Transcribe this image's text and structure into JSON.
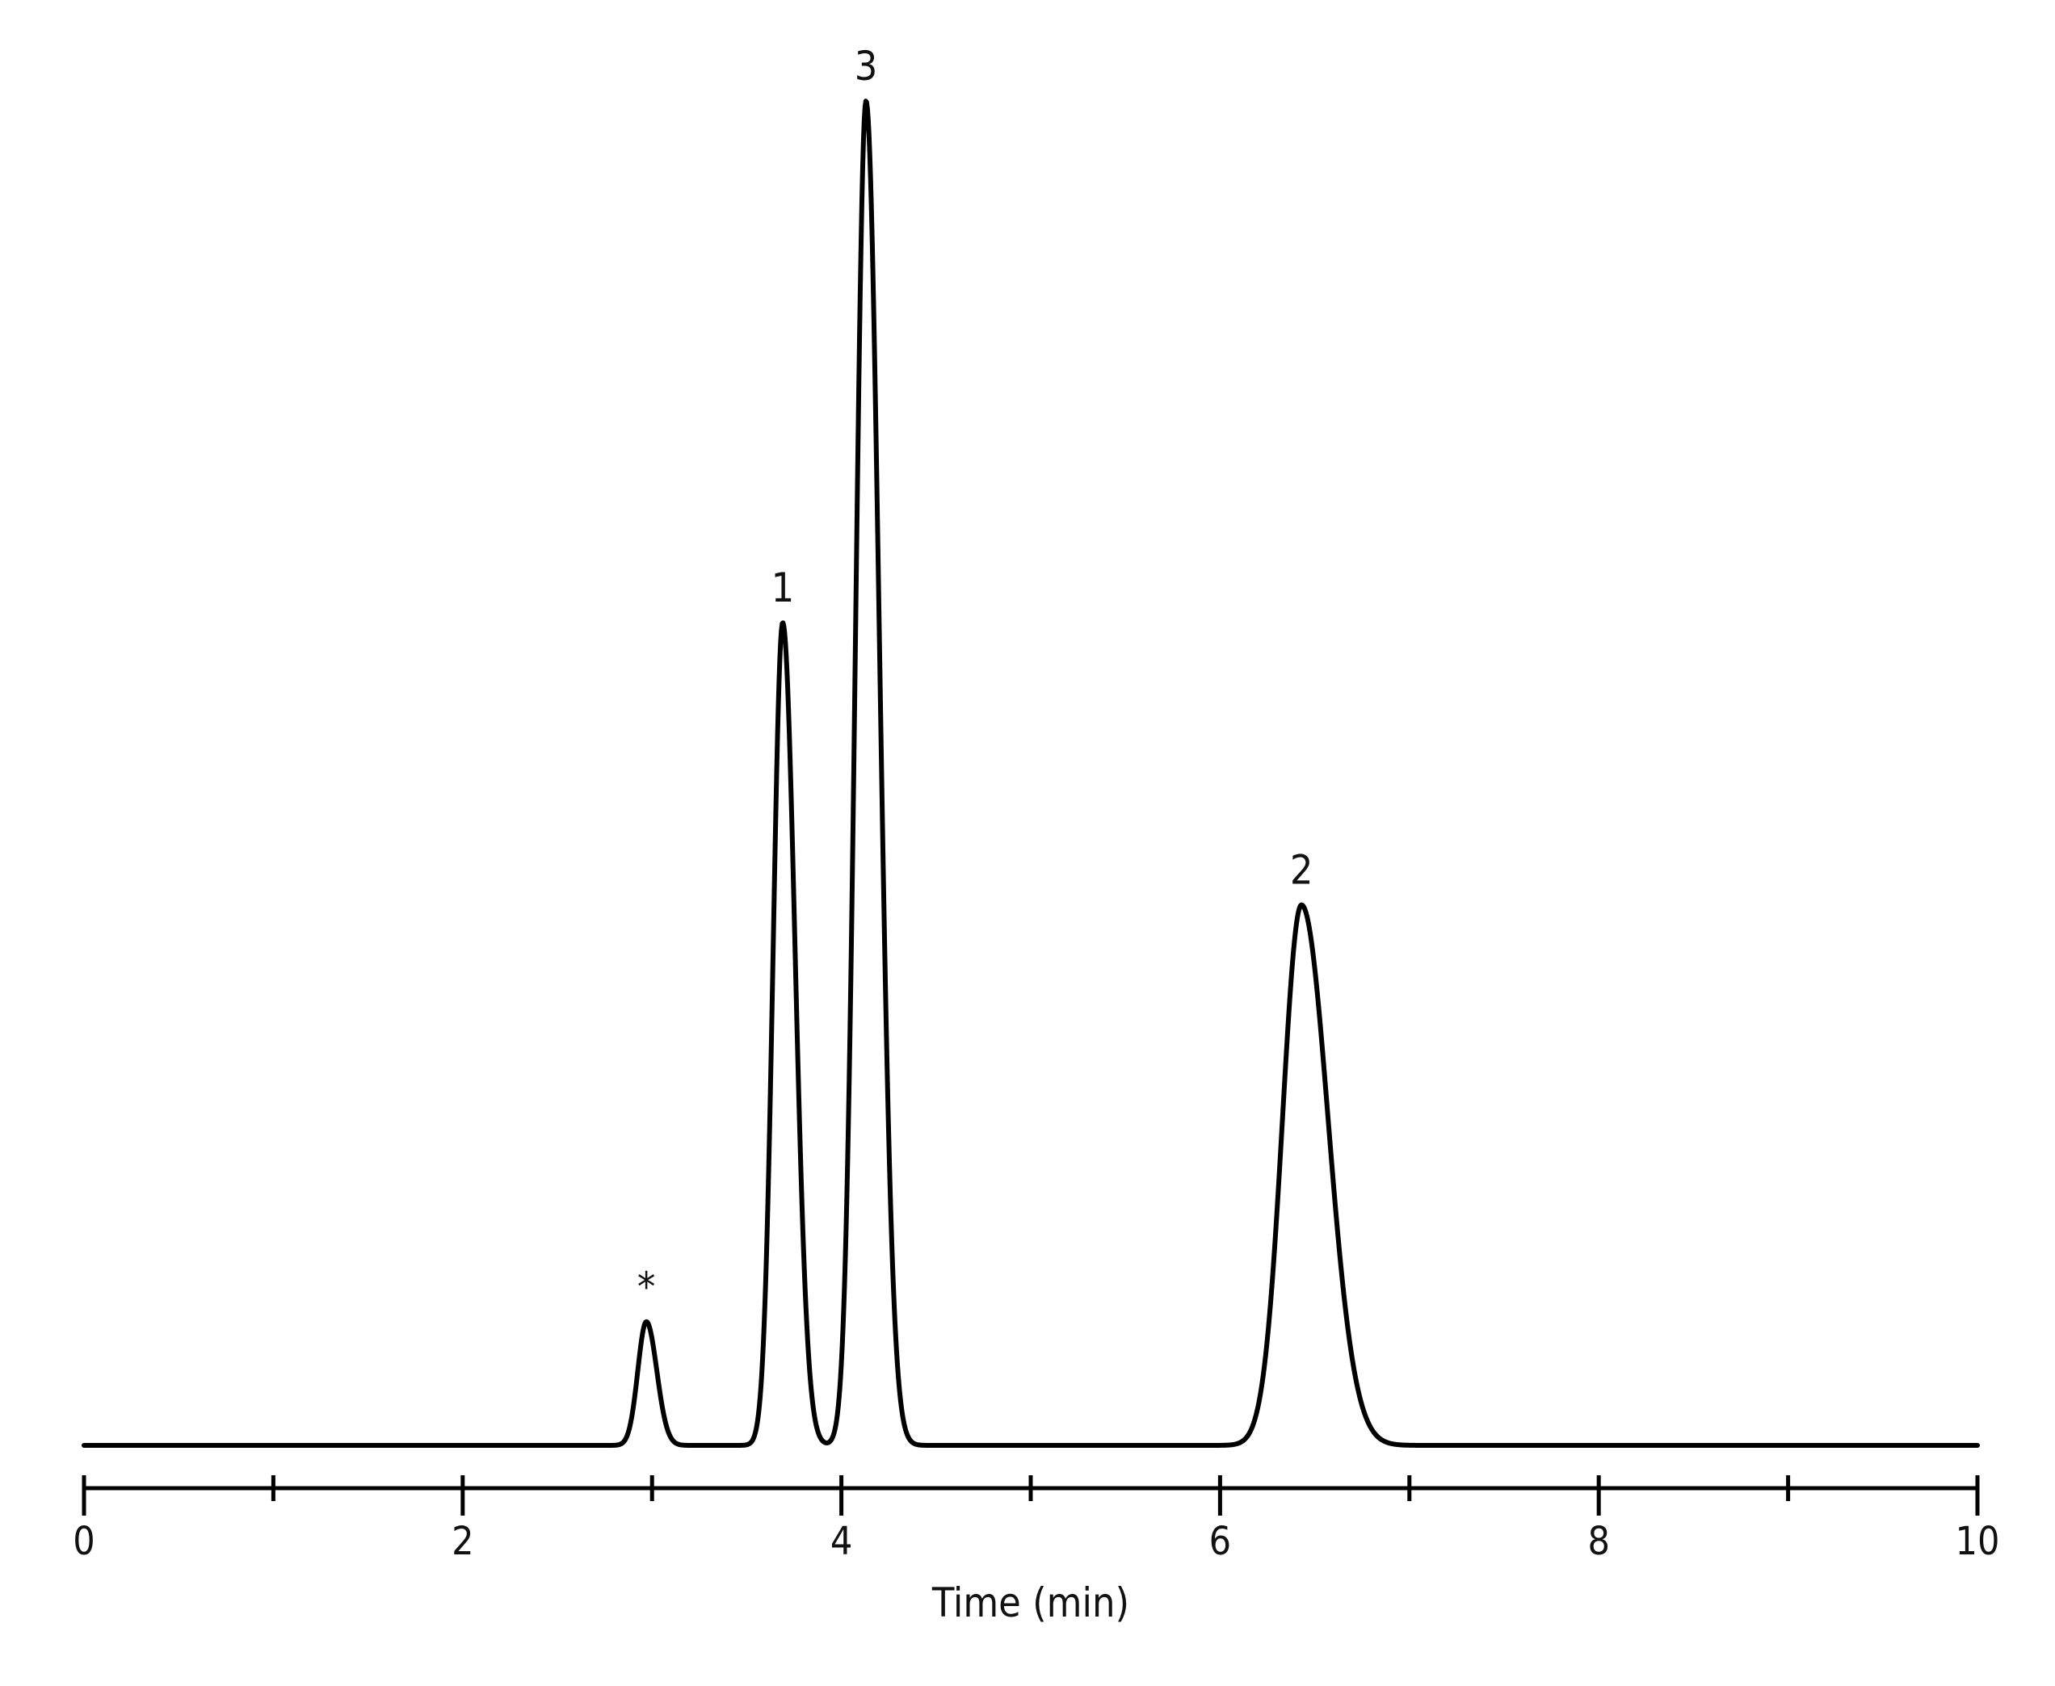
{
  "chart_data": {
    "type": "line",
    "title": "",
    "xlabel": "Time (min)",
    "ylabel": "",
    "xlim": [
      0,
      10
    ],
    "ylim": [
      0,
      1
    ],
    "grid": false,
    "legend": "none",
    "x_ticks_major": [
      0,
      2,
      4,
      6,
      8,
      10
    ],
    "x_tick_labels": [
      "0",
      "2",
      "4",
      "6",
      "8",
      "10"
    ],
    "x_ticks_minor": [
      1,
      3,
      5,
      7,
      9
    ],
    "line_color": "#000000",
    "baseline": 0.0,
    "peaks": [
      {
        "label": "*",
        "time": 2.97,
        "height": 0.092,
        "sigma_left": 0.045,
        "sigma_right": 0.055
      },
      {
        "label": "1",
        "time": 3.69,
        "height": 0.612,
        "sigma_left": 0.05,
        "sigma_right": 0.065
      },
      {
        "label": "3",
        "time": 4.13,
        "height": 1.0,
        "sigma_left": 0.055,
        "sigma_right": 0.07
      },
      {
        "label": "2",
        "time": 6.43,
        "height": 0.402,
        "sigma_left": 0.1,
        "sigma_right": 0.14
      }
    ]
  }
}
